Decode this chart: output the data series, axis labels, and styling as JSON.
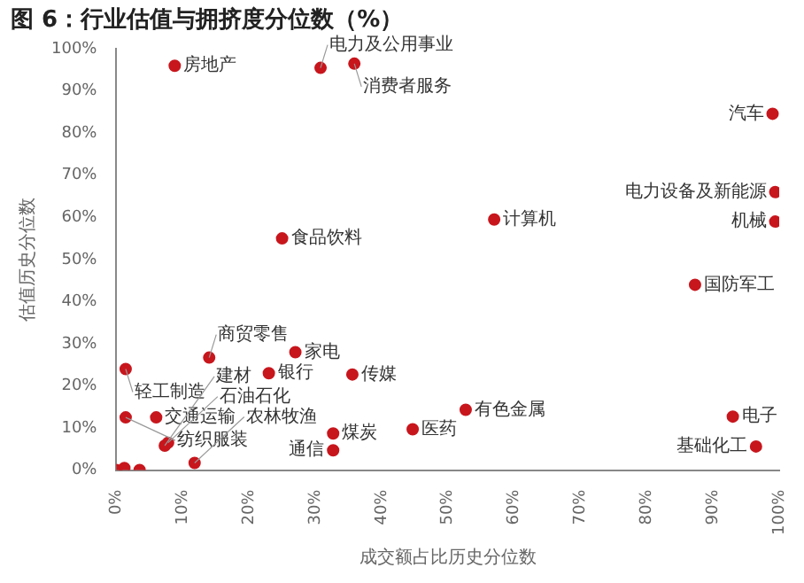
{
  "chart_data": {
    "type": "scatter",
    "title": "图 6：行业估值与拥挤度分位数（%）",
    "xlabel": "成交额占比历史分位数",
    "ylabel": "估值历史分位数",
    "x": [
      8.8,
      30.8,
      35.9,
      25,
      99,
      99.4,
      57,
      99.4,
      87.3,
      52.7,
      93,
      96.5,
      44.7,
      1.4,
      1.4,
      6,
      14,
      27,
      23,
      35.6,
      32.7,
      32.7,
      7.8,
      7.3,
      11.8,
      3.5,
      1.2,
      0
    ],
    "series": [
      {
        "color": "#c8161d",
        "values": [
          96,
          95.5,
          96.5,
          55,
          84.6,
          66,
          59.5,
          59,
          44,
          14.3,
          12.7,
          5.6,
          9.7,
          24,
          12.5,
          12.5,
          26.7,
          28,
          23,
          22.7,
          8.7,
          4.7,
          6.5,
          5.8,
          1.7,
          0,
          0.5,
          0
        ]
      }
    ],
    "xlim": [
      0,
      100
    ],
    "ylim": [
      0,
      100
    ],
    "xticks": [
      {
        "value": 0,
        "label": "0%"
      },
      {
        "value": 10,
        "label": "10%"
      },
      {
        "value": 20,
        "label": "20%"
      },
      {
        "value": 30,
        "label": "30%"
      },
      {
        "value": 40,
        "label": "40%"
      },
      {
        "value": 50,
        "label": "50%"
      },
      {
        "value": 60,
        "label": "60%"
      },
      {
        "value": 70,
        "label": "70%"
      },
      {
        "value": 80,
        "label": "80%"
      },
      {
        "value": 90,
        "label": "90%"
      },
      {
        "value": 100,
        "label": "100%"
      }
    ],
    "yticks": [
      {
        "value": 0,
        "label": "0%"
      },
      {
        "value": 10,
        "label": "10%"
      },
      {
        "value": 20,
        "label": "20%"
      },
      {
        "value": 30,
        "label": "30%"
      },
      {
        "value": 40,
        "label": "40%"
      },
      {
        "value": 50,
        "label": "50%"
      },
      {
        "value": 60,
        "label": "60%"
      },
      {
        "value": 70,
        "label": "70%"
      },
      {
        "value": 80,
        "label": "80%"
      },
      {
        "value": 90,
        "label": "90%"
      },
      {
        "value": 100,
        "label": "100%"
      }
    ],
    "grid": false,
    "legend": false,
    "marker": "circle",
    "annotations": [
      {
        "text": "房地产",
        "x": 8.8,
        "y": 96
      },
      {
        "text": "电力及公用事业",
        "x": 30.8,
        "y": 95.5
      },
      {
        "text": "消费者服务",
        "x": 35.9,
        "y": 96.5
      },
      {
        "text": "食品饮料",
        "x": 25,
        "y": 55
      },
      {
        "text": "汽车",
        "x": 99,
        "y": 84.6
      },
      {
        "text": "电力设备及新能源",
        "x": 99.4,
        "y": 66
      },
      {
        "text": "计算机",
        "x": 57,
        "y": 59.5
      },
      {
        "text": "机械",
        "x": 99.4,
        "y": 59
      },
      {
        "text": "国防军工",
        "x": 87.3,
        "y": 44
      },
      {
        "text": "有色金属",
        "x": 52.7,
        "y": 14.3
      },
      {
        "text": "电子",
        "x": 93,
        "y": 12.7
      },
      {
        "text": "基础化工",
        "x": 96.5,
        "y": 5.6
      },
      {
        "text": "医药",
        "x": 44.7,
        "y": 9.7
      },
      {
        "text": "轻工制造",
        "x": 1.4,
        "y": 24
      },
      {
        "text": "纺织服装",
        "x": 1.4,
        "y": 12.5
      },
      {
        "text": "交通运输",
        "x": 6,
        "y": 12.5
      },
      {
        "text": "商贸零售",
        "x": 14,
        "y": 26.7
      },
      {
        "text": "家电",
        "x": 27,
        "y": 28
      },
      {
        "text": "银行",
        "x": 23,
        "y": 23
      },
      {
        "text": "传媒",
        "x": 35.6,
        "y": 22.7
      },
      {
        "text": "煤炭",
        "x": 32.7,
        "y": 8.7
      },
      {
        "text": "通信",
        "x": 32.7,
        "y": 4.7
      },
      {
        "text": "石油石化",
        "x": 7.8,
        "y": 6.5
      },
      {
        "text": "建材",
        "x": 7.3,
        "y": 5.8
      },
      {
        "text": "农林牧渔",
        "x": 11.8,
        "y": 1.7
      }
    ]
  }
}
